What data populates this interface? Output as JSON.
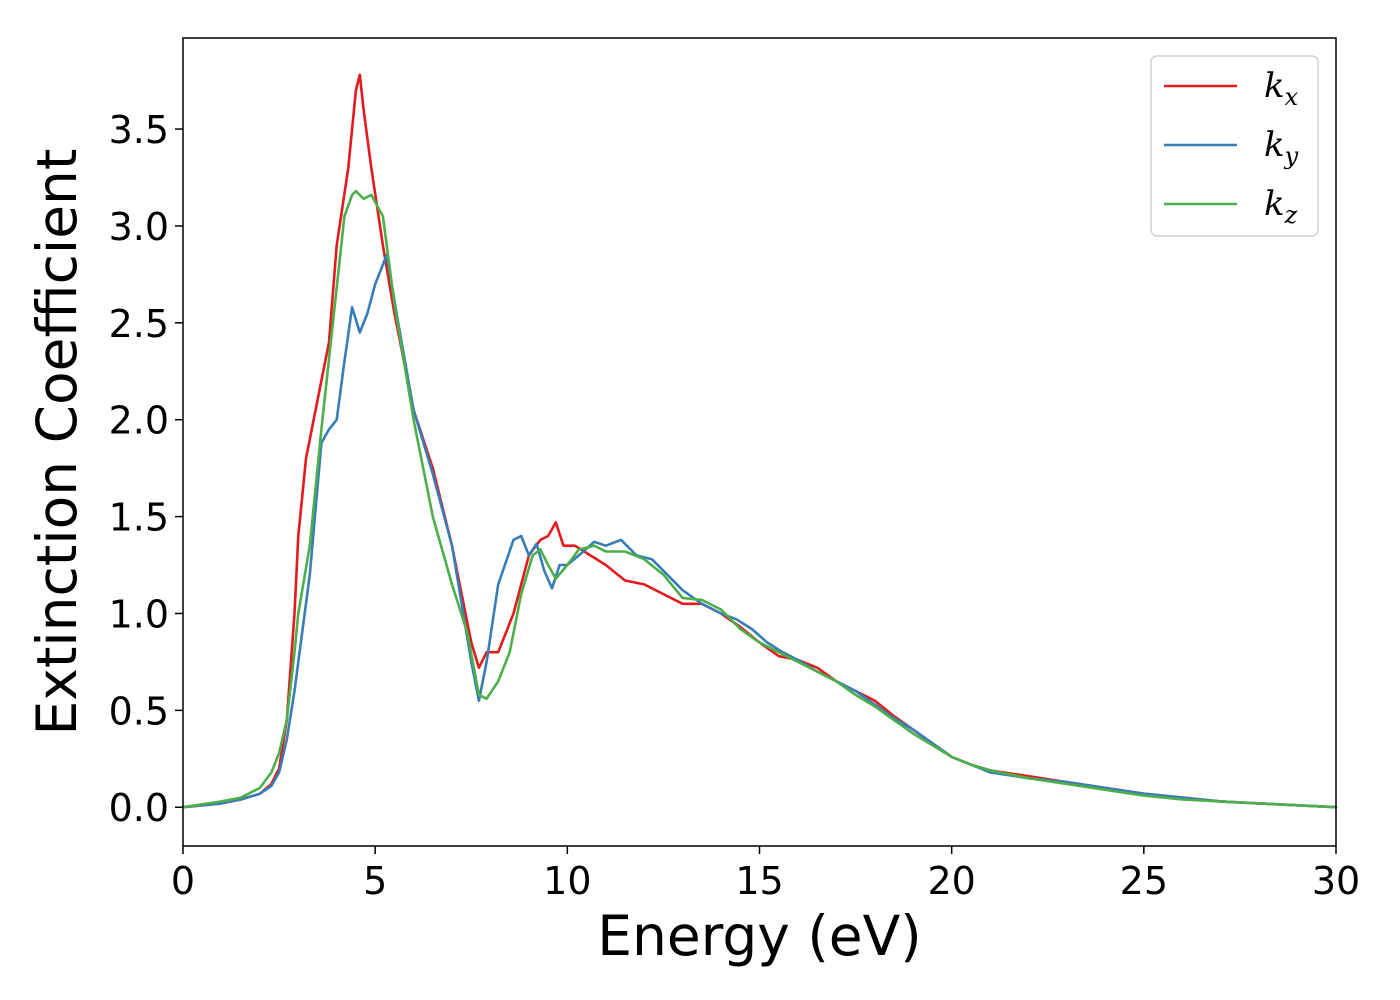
{
  "chart_data": {
    "type": "line",
    "title": "",
    "xlabel": "Energy (eV)",
    "ylabel": "Extinction Coefficient",
    "xlim": [
      0,
      30
    ],
    "ylim": [
      -0.2,
      3.97
    ],
    "x_ticks": [
      0,
      5,
      10,
      15,
      20,
      25,
      30
    ],
    "y_ticks": [
      0.0,
      0.5,
      1.0,
      1.5,
      2.0,
      2.5,
      3.0,
      3.5
    ],
    "grid": false,
    "legend_position": "top-right",
    "series": [
      {
        "name": "k",
        "subscript": "x",
        "color": "#e41a1c",
        "x": [
          0,
          1,
          1.5,
          2,
          2.3,
          2.5,
          2.7,
          2.9,
          3.0,
          3.2,
          3.5,
          3.8,
          4.0,
          4.3,
          4.5,
          4.6,
          4.7,
          4.9,
          5.2,
          5.5,
          6.0,
          6.5,
          7.0,
          7.5,
          7.7,
          7.9,
          8.2,
          8.6,
          9.0,
          9.3,
          9.5,
          9.7,
          9.9,
          10.2,
          10.6,
          11.0,
          11.5,
          12.0,
          12.5,
          13.0,
          13.5,
          14.0,
          14.5,
          15.0,
          15.5,
          16.0,
          16.5,
          17.0,
          17.5,
          18.0,
          18.5,
          19.0,
          19.5,
          20.0,
          20.5,
          21.0,
          22.0,
          23.0,
          24.0,
          25.0,
          26.0,
          27.0,
          28.0,
          29.0,
          30.0
        ],
        "y": [
          0.0,
          0.02,
          0.04,
          0.07,
          0.12,
          0.2,
          0.45,
          1.0,
          1.4,
          1.8,
          2.1,
          2.4,
          2.9,
          3.3,
          3.7,
          3.78,
          3.6,
          3.3,
          2.9,
          2.55,
          2.05,
          1.75,
          1.35,
          0.85,
          0.72,
          0.8,
          0.8,
          1.0,
          1.3,
          1.38,
          1.4,
          1.47,
          1.35,
          1.35,
          1.3,
          1.25,
          1.17,
          1.15,
          1.1,
          1.05,
          1.05,
          1.0,
          0.93,
          0.85,
          0.78,
          0.76,
          0.72,
          0.65,
          0.6,
          0.55,
          0.47,
          0.4,
          0.33,
          0.26,
          0.22,
          0.19,
          0.16,
          0.13,
          0.1,
          0.07,
          0.05,
          0.03,
          0.02,
          0.01,
          0.0
        ]
      },
      {
        "name": "k",
        "subscript": "y",
        "color": "#377eb8",
        "x": [
          0,
          1,
          1.5,
          2,
          2.3,
          2.5,
          2.7,
          2.9,
          3.0,
          3.3,
          3.6,
          3.8,
          4.0,
          4.2,
          4.4,
          4.6,
          4.8,
          5.0,
          5.3,
          5.6,
          6.0,
          6.5,
          7.0,
          7.5,
          7.7,
          7.9,
          8.2,
          8.6,
          8.8,
          9.0,
          9.2,
          9.4,
          9.6,
          9.8,
          10.0,
          10.3,
          10.7,
          11.0,
          11.4,
          11.8,
          12.2,
          12.6,
          13.0,
          13.5,
          14.0,
          14.4,
          14.8,
          15.2,
          15.6,
          16.0,
          16.5,
          17.0,
          17.5,
          18.0,
          18.5,
          19.0,
          19.5,
          20.0,
          20.5,
          21.0,
          22.0,
          23.0,
          24.0,
          25.0,
          26.0,
          27.0,
          28.0,
          29.0,
          30.0
        ],
        "y": [
          0.0,
          0.02,
          0.04,
          0.07,
          0.11,
          0.18,
          0.35,
          0.6,
          0.75,
          1.2,
          1.88,
          1.95,
          2.0,
          2.3,
          2.58,
          2.45,
          2.55,
          2.7,
          2.85,
          2.5,
          2.05,
          1.72,
          1.35,
          0.75,
          0.55,
          0.75,
          1.15,
          1.38,
          1.4,
          1.3,
          1.36,
          1.22,
          1.13,
          1.25,
          1.25,
          1.3,
          1.37,
          1.35,
          1.38,
          1.3,
          1.28,
          1.2,
          1.12,
          1.05,
          1.0,
          0.97,
          0.92,
          0.85,
          0.8,
          0.76,
          0.7,
          0.65,
          0.6,
          0.53,
          0.46,
          0.4,
          0.33,
          0.26,
          0.22,
          0.18,
          0.15,
          0.13,
          0.1,
          0.07,
          0.05,
          0.03,
          0.02,
          0.01,
          0.0
        ]
      },
      {
        "name": "k",
        "subscript": "z",
        "color": "#4daf4a",
        "x": [
          0,
          1,
          1.5,
          2,
          2.3,
          2.5,
          2.7,
          2.9,
          3.0,
          3.3,
          3.6,
          3.9,
          4.2,
          4.4,
          4.5,
          4.7,
          4.9,
          5.2,
          5.5,
          6.0,
          6.5,
          7.0,
          7.4,
          7.7,
          7.9,
          8.2,
          8.5,
          8.8,
          9.1,
          9.3,
          9.5,
          9.7,
          10.0,
          10.3,
          10.7,
          11.0,
          11.5,
          12.0,
          12.5,
          13.0,
          13.5,
          14.0,
          14.5,
          15.0,
          15.5,
          16.0,
          16.5,
          17.0,
          17.5,
          18.0,
          18.5,
          19.0,
          19.5,
          20.0,
          20.5,
          21.0,
          22.0,
          23.0,
          24.0,
          25.0,
          26.0,
          27.0,
          28.0,
          29.0,
          30.0
        ],
        "y": [
          0.0,
          0.03,
          0.05,
          0.1,
          0.18,
          0.28,
          0.45,
          0.8,
          1.0,
          1.35,
          1.95,
          2.5,
          3.05,
          3.16,
          3.18,
          3.14,
          3.16,
          3.05,
          2.6,
          2.0,
          1.5,
          1.15,
          0.9,
          0.58,
          0.56,
          0.65,
          0.8,
          1.1,
          1.3,
          1.33,
          1.25,
          1.18,
          1.25,
          1.33,
          1.35,
          1.32,
          1.32,
          1.28,
          1.2,
          1.08,
          1.07,
          1.02,
          0.92,
          0.85,
          0.8,
          0.75,
          0.7,
          0.65,
          0.58,
          0.52,
          0.45,
          0.38,
          0.32,
          0.26,
          0.22,
          0.19,
          0.15,
          0.12,
          0.09,
          0.06,
          0.04,
          0.03,
          0.02,
          0.01,
          0.0
        ]
      }
    ]
  }
}
